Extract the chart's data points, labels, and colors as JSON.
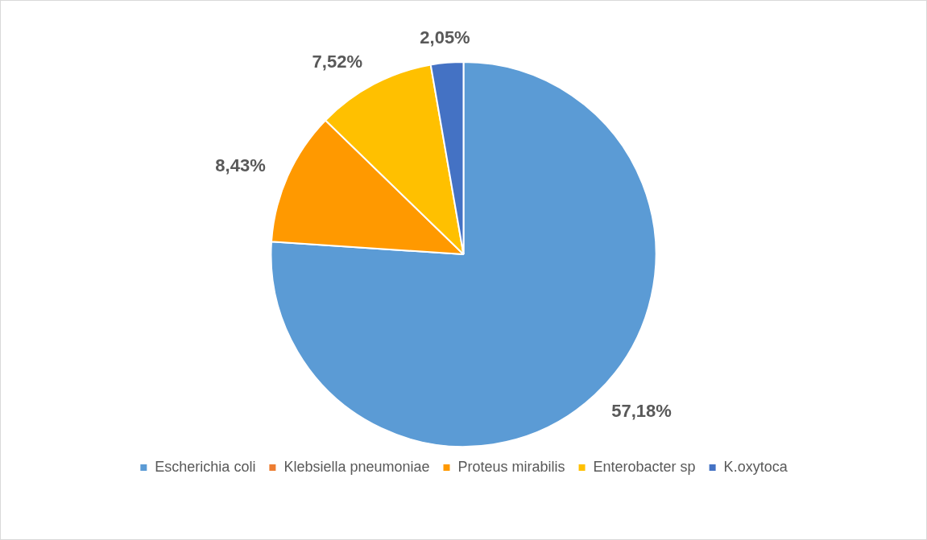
{
  "chart_data": {
    "type": "pie",
    "categories": [
      "Escherichia coli",
      "Klebsiella pneumoniae",
      "Proteus mirabilis",
      "Enterobacter sp",
      "K.oxytoca"
    ],
    "values": [
      57.18,
      null,
      8.43,
      7.52,
      2.05
    ],
    "value_labels": [
      "57,18%",
      null,
      "8,43%",
      "7,52%",
      "2,05%"
    ],
    "colors": [
      "#5b9bd5",
      "#ed7d31",
      "#ff9900",
      "#ffc000",
      "#4472c4"
    ],
    "legend": "bottom"
  }
}
